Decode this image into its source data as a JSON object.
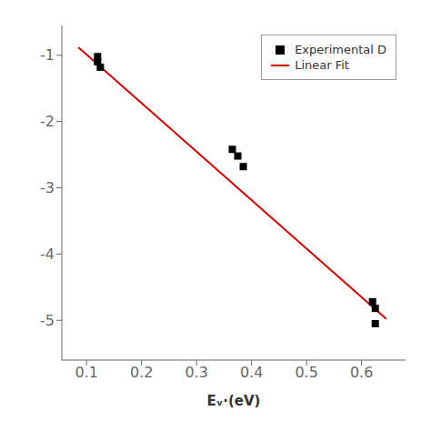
{
  "chart_data": {
    "type": "scatter",
    "xlabel": "Eᵥ·(eV)",
    "xlim": [
      0.055,
      0.68
    ],
    "ylim": [
      -5.6,
      -0.55
    ],
    "xticks": [
      0.1,
      0.2,
      0.3,
      0.4,
      0.5,
      0.6
    ],
    "yticks": [
      -1,
      -2,
      -3,
      -4,
      -5
    ],
    "legend": "upper right",
    "series": [
      {
        "name": "Experimental D",
        "type": "scatter",
        "marker": "square",
        "color": "#000000",
        "x": [
          0.12,
          0.12,
          0.125,
          0.365,
          0.375,
          0.385,
          0.62,
          0.625,
          0.625
        ],
        "values": [
          -1.02,
          -1.1,
          -1.18,
          -2.42,
          -2.52,
          -2.68,
          -4.72,
          -4.82,
          -5.05
        ]
      },
      {
        "name": "Linear Fit",
        "type": "line",
        "color": "#cc0000",
        "x": [
          0.085,
          0.645
        ],
        "values": [
          -0.88,
          -4.98
        ]
      }
    ]
  }
}
